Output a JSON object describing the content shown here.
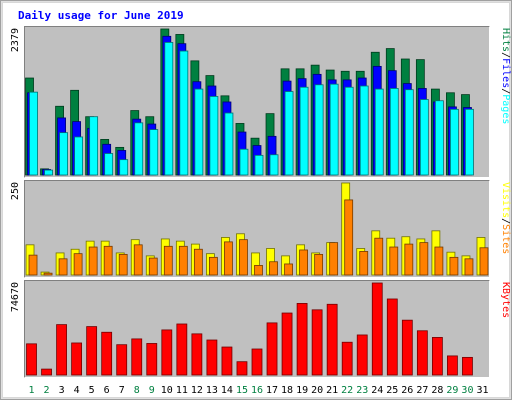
{
  "chart_data": {
    "type": "bar",
    "title": "Daily usage for June 2019",
    "categories": [
      "1",
      "2",
      "3",
      "4",
      "5",
      "6",
      "7",
      "8",
      "9",
      "10",
      "11",
      "12",
      "13",
      "14",
      "15",
      "16",
      "17",
      "18",
      "19",
      "20",
      "21",
      "22",
      "23",
      "24",
      "25",
      "26",
      "27",
      "28",
      "29",
      "30",
      "31"
    ],
    "weekend_days": [
      "1",
      "2",
      "8",
      "9",
      "15",
      "16",
      "22",
      "23",
      "29",
      "30"
    ],
    "panels": [
      {
        "id": "hits_files_pages",
        "ymax_label": "2379",
        "ymax": 2379,
        "legend": [
          "Pages",
          "/",
          "Files",
          "/",
          "Hits"
        ],
        "series": [
          {
            "name": "Hits",
            "color": "#008040",
            "values": [
              1580,
              100,
              1120,
              1380,
              950,
              580,
              450,
              1050,
              950,
              2379,
              2290,
              1860,
              1620,
              1290,
              840,
              600,
              1000,
              1730,
              1730,
              1790,
              1710,
              1690,
              1690,
              2000,
              2060,
              1890,
              1880,
              1400,
              1340,
              1310,
              0
            ]
          },
          {
            "name": "Files",
            "color": "#0000ff",
            "values": [
              1340,
              90,
              930,
              870,
              760,
              500,
              400,
              910,
              830,
              2260,
              2140,
              1520,
              1450,
              1190,
              700,
              480,
              630,
              1530,
              1570,
              1640,
              1550,
              1550,
              1580,
              1770,
              1700,
              1490,
              1410,
              1190,
              1110,
              1100,
              0
            ]
          },
          {
            "name": "Pages",
            "color": "#00ffff",
            "values": [
              1350,
              80,
              690,
              620,
              950,
              350,
              250,
              850,
              740,
              2160,
              2020,
              1400,
              1280,
              1010,
              420,
              320,
              330,
              1360,
              1430,
              1470,
              1480,
              1430,
              1450,
              1400,
              1410,
              1390,
              1230,
              1210,
              1070,
              1070,
              0
            ]
          }
        ]
      },
      {
        "id": "visits_sites",
        "ymax_label": "250",
        "ymax": 250,
        "legend": [
          "Sites",
          "/",
          "Visits"
        ],
        "series": [
          {
            "name": "Visits",
            "color": "#ffff00",
            "values": [
              82,
              8,
              60,
              70,
              92,
              92,
              60,
              96,
              52,
              98,
              92,
              84,
              58,
              102,
              112,
              60,
              72,
              52,
              82,
              60,
              88,
              250,
              72,
              120,
              100,
              104,
              98,
              120,
              62,
              52,
              102
            ]
          },
          {
            "name": "Sites",
            "color": "#ff8000",
            "values": [
              54,
              5,
              44,
              58,
              76,
              78,
              56,
              82,
              46,
              78,
              78,
              70,
              48,
              90,
              96,
              26,
              36,
              30,
              68,
              56,
              88,
              204,
              64,
              100,
              76,
              84,
              88,
              76,
              48,
              44,
              74
            ]
          }
        ]
      },
      {
        "id": "kbytes",
        "ymax_label": "74670",
        "ymax": 74670,
        "legend": [
          "KBytes"
        ],
        "series": [
          {
            "name": "KBytes",
            "color": "#ff0000",
            "values": [
              25300,
              4800,
              40900,
              26000,
              39300,
              34700,
              24600,
              29300,
              25600,
              36600,
              41400,
              33400,
              28400,
              22700,
              10800,
              21100,
              42300,
              50300,
              58100,
              52900,
              57400,
              26600,
              32500,
              74670,
              61700,
              44500,
              35900,
              30500,
              15500,
              14300,
              0
            ]
          }
        ]
      }
    ]
  },
  "colors": {
    "background": "#ffffff",
    "plot_background": "#c0c0c0",
    "title": "#0000ff",
    "axis_text": "#000000",
    "weekend_label": "#008040",
    "frame_light": "#ffffff",
    "frame_dark": "#808080"
  }
}
